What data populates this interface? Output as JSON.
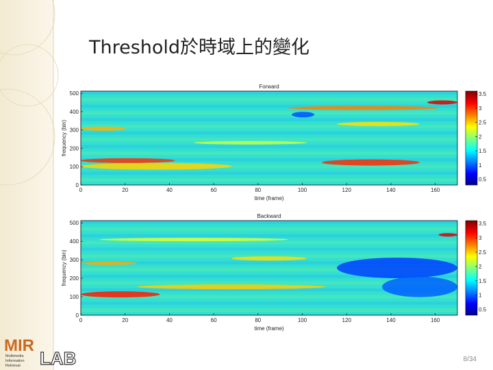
{
  "slide": {
    "title": "Threshold於時域上的變化",
    "page_number": "8/34",
    "logo": {
      "mark": "MIR",
      "lab": "LAB",
      "lines": [
        "Multimedia",
        "Information",
        "Retrieval"
      ]
    }
  },
  "chart_data": [
    {
      "type": "heatmap",
      "title": "Forward",
      "x_label": "time (frame)",
      "y_label": "frequency (bin)",
      "xlim": [
        0,
        170
      ],
      "xticks": [
        0,
        20,
        40,
        60,
        80,
        100,
        120,
        140,
        160
      ],
      "ylim": [
        0,
        512
      ],
      "yticks": [
        0,
        100,
        200,
        300,
        400,
        500
      ],
      "colorbar_lim": [
        0.3,
        3.6
      ],
      "colorbar_ticks": [
        0.5,
        1,
        1.5,
        2,
        2.5,
        3,
        3.5
      ]
    },
    {
      "type": "heatmap",
      "title": "Backward",
      "x_label": "time (frame)",
      "y_label": "frequency (bin)",
      "xlim": [
        0,
        170
      ],
      "xticks": [
        0,
        20,
        40,
        60,
        80,
        100,
        120,
        140,
        160
      ],
      "ylim": [
        0,
        512
      ],
      "yticks": [
        0,
        100,
        200,
        300,
        400,
        500
      ],
      "colorbar_lim": [
        0.3,
        3.6
      ],
      "colorbar_ticks": [
        0.5,
        1,
        1.5,
        2,
        2.5,
        3,
        3.5
      ]
    }
  ]
}
